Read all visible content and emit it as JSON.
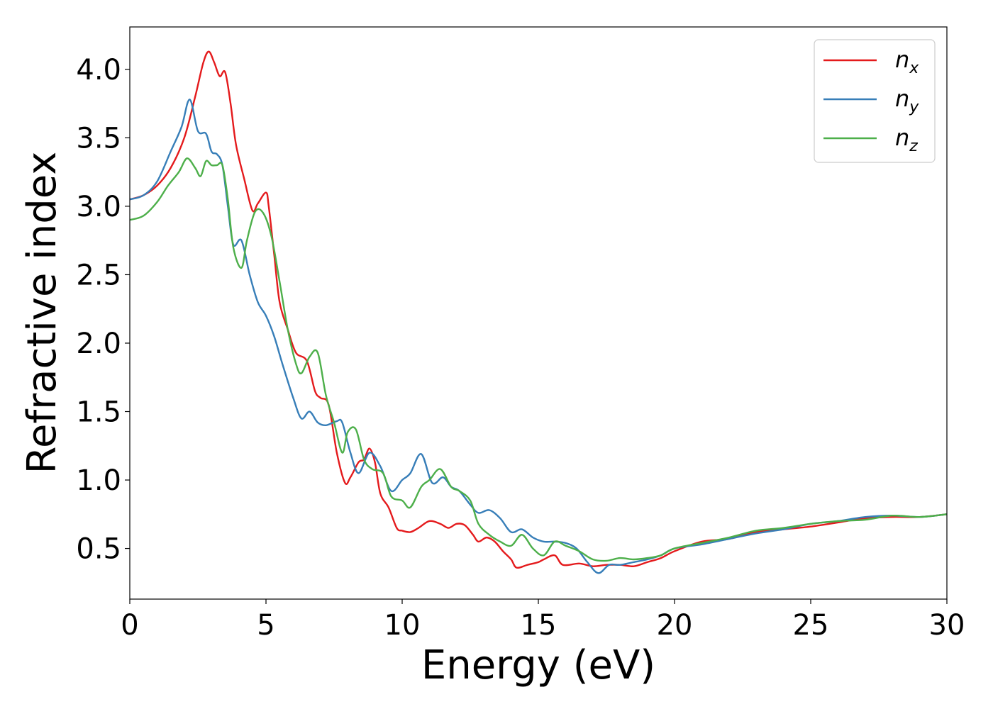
{
  "chart_data": {
    "type": "line",
    "title": "",
    "xlabel": "Energy (eV)",
    "ylabel": "Refractive index",
    "xlim": [
      0,
      30
    ],
    "ylim": [
      0.13,
      4.31
    ],
    "xticks": [
      0,
      5,
      10,
      15,
      20,
      25,
      30
    ],
    "yticks": [
      0.5,
      1.0,
      1.5,
      2.0,
      2.5,
      3.0,
      3.5,
      4.0
    ],
    "xtick_labels": [
      "0",
      "5",
      "10",
      "15",
      "20",
      "25",
      "30"
    ],
    "ytick_labels": [
      "0.5",
      "1.0",
      "1.5",
      "2.0",
      "2.5",
      "3.0",
      "3.5",
      "4.0"
    ],
    "grid": false,
    "legend_position": "top-right",
    "series": [
      {
        "name": "n",
        "subscript": "x",
        "color": "#e41a1c",
        "x": [
          0,
          0.5,
          1.0,
          1.5,
          2.0,
          2.4,
          2.7,
          2.9,
          3.1,
          3.3,
          3.5,
          3.7,
          3.9,
          4.2,
          4.5,
          4.7,
          5.0,
          5.1,
          5.3,
          5.5,
          5.8,
          6.1,
          6.5,
          6.8,
          7.0,
          7.3,
          7.6,
          7.9,
          8.1,
          8.4,
          8.6,
          8.8,
          9.0,
          9.2,
          9.5,
          9.8,
          10.0,
          10.3,
          10.6,
          11.0,
          11.4,
          11.7,
          12.0,
          12.3,
          12.6,
          12.8,
          13.1,
          13.4,
          13.7,
          14.0,
          14.2,
          14.6,
          15.0,
          15.2,
          15.6,
          15.9,
          16.5,
          17.0,
          17.5,
          18.0,
          18.5,
          19.0,
          19.5,
          20.0,
          21.0,
          22.0,
          23.0,
          24.0,
          25.0,
          26.0,
          27.0,
          28.0,
          29.0,
          30.0
        ],
        "values": [
          3.05,
          3.08,
          3.15,
          3.28,
          3.5,
          3.8,
          4.05,
          4.13,
          4.05,
          3.95,
          3.98,
          3.75,
          3.45,
          3.2,
          2.97,
          3.02,
          3.1,
          3.0,
          2.65,
          2.3,
          2.1,
          1.93,
          1.87,
          1.65,
          1.6,
          1.55,
          1.2,
          0.98,
          1.02,
          1.13,
          1.15,
          1.23,
          1.13,
          0.9,
          0.8,
          0.65,
          0.63,
          0.62,
          0.65,
          0.7,
          0.68,
          0.65,
          0.68,
          0.67,
          0.6,
          0.55,
          0.58,
          0.55,
          0.48,
          0.42,
          0.36,
          0.38,
          0.4,
          0.42,
          0.45,
          0.38,
          0.39,
          0.37,
          0.38,
          0.38,
          0.37,
          0.4,
          0.43,
          0.48,
          0.55,
          0.57,
          0.62,
          0.64,
          0.66,
          0.69,
          0.72,
          0.73,
          0.73,
          0.75
        ]
      },
      {
        "name": "n",
        "subscript": "y",
        "color": "#377eb8",
        "x": [
          0,
          0.5,
          1.0,
          1.5,
          1.9,
          2.2,
          2.5,
          2.8,
          3.0,
          3.2,
          3.4,
          3.6,
          3.8,
          4.1,
          4.4,
          4.7,
          5.0,
          5.3,
          5.6,
          6.0,
          6.3,
          6.6,
          6.9,
          7.2,
          7.6,
          7.8,
          8.1,
          8.4,
          8.8,
          9.2,
          9.6,
          10.0,
          10.3,
          10.7,
          11.1,
          11.5,
          11.8,
          12.1,
          12.5,
          12.8,
          13.2,
          13.6,
          14.0,
          14.4,
          14.8,
          15.2,
          15.6,
          16.0,
          16.4,
          16.8,
          17.2,
          17.6,
          18.0,
          18.5,
          19.0,
          19.5,
          20.0,
          21.0,
          22.0,
          23.0,
          24.0,
          25.0,
          26.0,
          27.0,
          28.0,
          29.0,
          30.0
        ],
        "values": [
          3.05,
          3.08,
          3.18,
          3.4,
          3.58,
          3.78,
          3.55,
          3.53,
          3.4,
          3.38,
          3.3,
          3.0,
          2.72,
          2.75,
          2.5,
          2.3,
          2.2,
          2.05,
          1.85,
          1.6,
          1.45,
          1.5,
          1.42,
          1.4,
          1.43,
          1.42,
          1.2,
          1.05,
          1.2,
          1.1,
          0.92,
          1.0,
          1.05,
          1.19,
          0.98,
          1.02,
          0.95,
          0.92,
          0.82,
          0.76,
          0.78,
          0.72,
          0.62,
          0.64,
          0.58,
          0.55,
          0.55,
          0.54,
          0.5,
          0.4,
          0.32,
          0.38,
          0.38,
          0.4,
          0.42,
          0.45,
          0.5,
          0.53,
          0.57,
          0.61,
          0.64,
          0.68,
          0.7,
          0.73,
          0.74,
          0.73,
          0.75
        ]
      },
      {
        "name": "n",
        "subscript": "z",
        "color": "#4daf4a",
        "x": [
          0,
          0.5,
          1.0,
          1.4,
          1.8,
          2.1,
          2.4,
          2.6,
          2.8,
          3.0,
          3.2,
          3.4,
          3.6,
          3.8,
          4.1,
          4.3,
          4.6,
          4.9,
          5.2,
          5.5,
          5.8,
          6.1,
          6.3,
          6.6,
          6.9,
          7.2,
          7.5,
          7.8,
          8.0,
          8.3,
          8.6,
          8.9,
          9.3,
          9.6,
          10.0,
          10.3,
          10.7,
          11.0,
          11.4,
          11.8,
          12.1,
          12.5,
          12.8,
          13.2,
          13.6,
          14.0,
          14.4,
          14.8,
          15.2,
          15.6,
          16.0,
          16.5,
          17.0,
          17.5,
          18.0,
          18.5,
          19.0,
          19.5,
          20.0,
          21.0,
          22.0,
          23.0,
          24.0,
          25.0,
          26.0,
          27.0,
          28.0,
          29.0,
          30.0
        ],
        "values": [
          2.9,
          2.93,
          3.03,
          3.15,
          3.25,
          3.35,
          3.28,
          3.22,
          3.33,
          3.3,
          3.3,
          3.3,
          3.05,
          2.7,
          2.55,
          2.75,
          2.96,
          2.95,
          2.78,
          2.45,
          2.1,
          1.85,
          1.78,
          1.9,
          1.93,
          1.62,
          1.42,
          1.2,
          1.35,
          1.37,
          1.15,
          1.08,
          1.05,
          0.88,
          0.85,
          0.8,
          0.95,
          1.0,
          1.08,
          0.95,
          0.92,
          0.85,
          0.68,
          0.6,
          0.55,
          0.52,
          0.6,
          0.5,
          0.45,
          0.55,
          0.52,
          0.48,
          0.42,
          0.41,
          0.43,
          0.42,
          0.43,
          0.45,
          0.5,
          0.54,
          0.58,
          0.63,
          0.65,
          0.68,
          0.7,
          0.71,
          0.74,
          0.73,
          0.75
        ]
      }
    ]
  }
}
